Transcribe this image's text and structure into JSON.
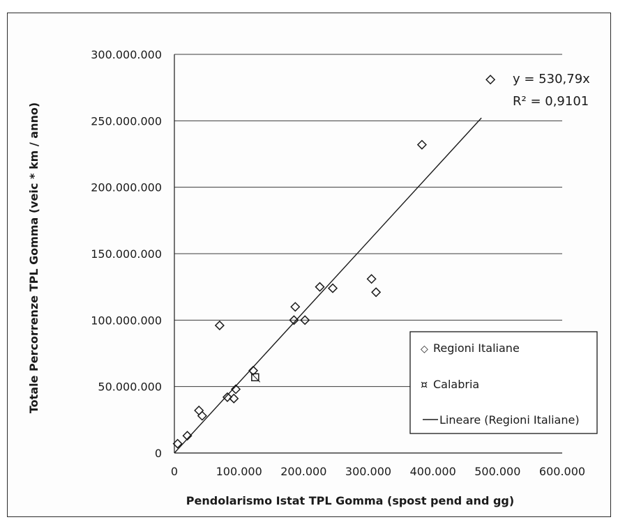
{
  "chart_data": {
    "type": "scatter",
    "title": "",
    "xlabel": "Pendolarismo Istat TPL Gomma (spost pend and gg)",
    "ylabel": "Totale Percorrenze TPL Gomma   (veic * km / anno)",
    "xlim": [
      0,
      600000
    ],
    "ylim": [
      0,
      300000000
    ],
    "x_ticks": [
      "0",
      "100.000",
      "200.000",
      "300.000",
      "400.000",
      "500.000",
      "600.000"
    ],
    "y_ticks": [
      "0",
      "50.000.000",
      "100.000.000",
      "150.000.000",
      "200.000.000",
      "250.000.000",
      "300.000.000"
    ],
    "grid": "horizontal",
    "legend_position": "bottom-right",
    "series": [
      {
        "name": "Regioni Italiane",
        "marker": "diamond",
        "points": [
          {
            "x": 5000,
            "y": 7000000
          },
          {
            "x": 20000,
            "y": 13000000
          },
          {
            "x": 38000,
            "y": 32000000
          },
          {
            "x": 43000,
            "y": 28000000
          },
          {
            "x": 70000,
            "y": 96000000
          },
          {
            "x": 82000,
            "y": 42000000
          },
          {
            "x": 92000,
            "y": 41000000
          },
          {
            "x": 95000,
            "y": 48000000
          },
          {
            "x": 122000,
            "y": 62000000
          },
          {
            "x": 185000,
            "y": 100000000
          },
          {
            "x": 187000,
            "y": 110000000
          },
          {
            "x": 202000,
            "y": 100000000
          },
          {
            "x": 225000,
            "y": 125000000
          },
          {
            "x": 245000,
            "y": 124000000
          },
          {
            "x": 305000,
            "y": 131000000
          },
          {
            "x": 312000,
            "y": 121000000
          },
          {
            "x": 383000,
            "y": 232000000
          },
          {
            "x": 489000,
            "y": 281000000
          }
        ]
      },
      {
        "name": "Calabria",
        "marker": "square",
        "points": [
          {
            "x": 125000,
            "y": 57000000
          }
        ]
      }
    ],
    "trendline": {
      "name": "Lineare (Regioni Italiane)",
      "slope": 530.79,
      "x_range": [
        0,
        475000
      ],
      "equation": "y = 530,79x",
      "r_squared": "R² = 0,9101"
    }
  },
  "legend": {
    "items": [
      {
        "label": "Regioni Italiane",
        "symbol": "◇"
      },
      {
        "label": "Calabria",
        "symbol": "¤"
      },
      {
        "label": "Lineare (Regioni Italiane)",
        "symbol": "line"
      }
    ]
  },
  "colors": {
    "ink": "#1a1a1a",
    "grid": "#3a3a3a",
    "background": "#fdfdfd"
  }
}
